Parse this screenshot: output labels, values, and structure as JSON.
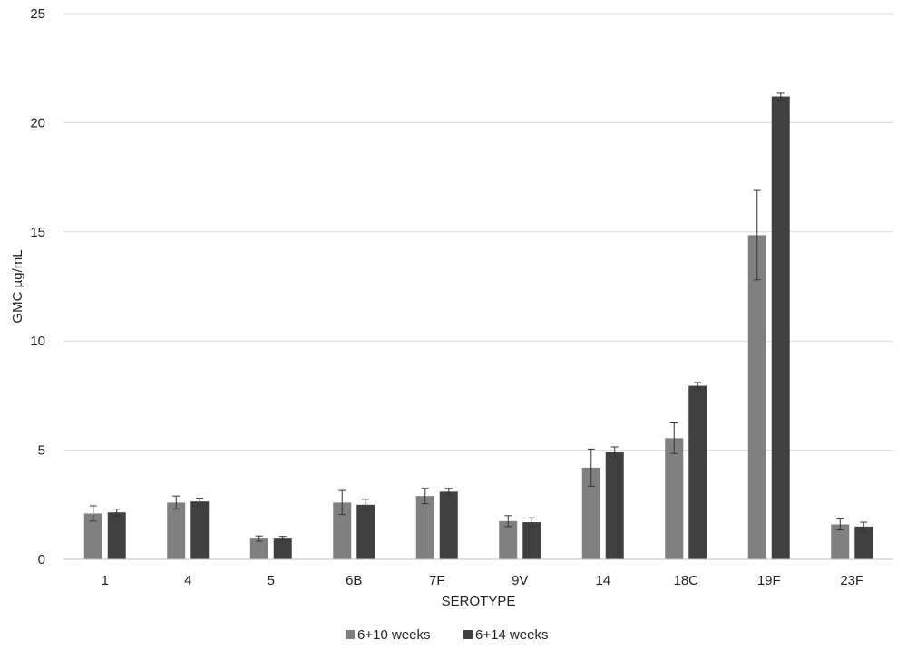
{
  "chart_data": {
    "type": "bar",
    "categories": [
      "1",
      "4",
      "5",
      "6B",
      "7F",
      "9V",
      "14",
      "18C",
      "19F",
      "23F"
    ],
    "series": [
      {
        "name": "6+10 weeks",
        "color": "#808080",
        "values": [
          2.1,
          2.6,
          0.95,
          2.6,
          2.9,
          1.75,
          4.2,
          5.55,
          14.85,
          1.6
        ],
        "errors": [
          0.35,
          0.3,
          0.12,
          0.55,
          0.35,
          0.25,
          0.85,
          0.7,
          2.05,
          0.25
        ]
      },
      {
        "name": "6+14 weeks",
        "color": "#404040",
        "values": [
          2.15,
          2.65,
          0.95,
          2.5,
          3.1,
          1.7,
          4.9,
          7.95,
          21.2,
          1.5
        ],
        "errors": [
          0.15,
          0.15,
          0.1,
          0.25,
          0.15,
          0.2,
          0.25,
          0.15,
          0.15,
          0.2
        ]
      }
    ],
    "xlabel": "SEROTYPE",
    "ylabel": "GMC µg/mL",
    "ylim": [
      0,
      25
    ],
    "yticks": [
      "0",
      "5",
      "10",
      "15",
      "20",
      "25"
    ],
    "grid": true,
    "legend_position": "bottom"
  }
}
